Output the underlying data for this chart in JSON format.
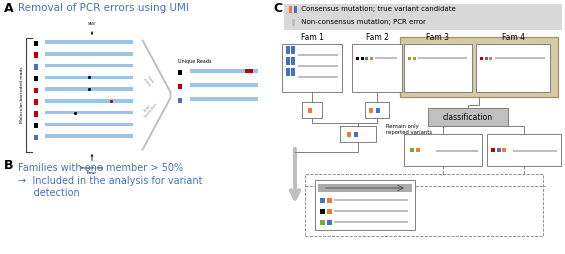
{
  "title_a": "Removal of PCR errors using UMI",
  "title_b_line1": "Families with one member > 50%",
  "title_b_line2": "→  Included in the analysis for variant",
  "title_b_line3": "     detection",
  "legend_line1": " Consensus mutation; true variant candidate",
  "legend_line2": " Non-consensus mutation; PCR error",
  "classification_text": "classification",
  "remain_text": "Remain only\nreported variants",
  "bg_color": "#ffffff",
  "blue": "#4472c4",
  "light_blue": "#9dc3e6",
  "red": "#c00000",
  "orange": "#ed7d31",
  "green": "#70ad47",
  "gray": "#808080",
  "lgray": "#bfbfbf",
  "dark": "#404040",
  "black": "#000000",
  "tan_bg": "#d6c9a8",
  "tan_border": "#a89060",
  "legend_bg": "#d9d9d9",
  "cls_bg": "#c0c0c0"
}
